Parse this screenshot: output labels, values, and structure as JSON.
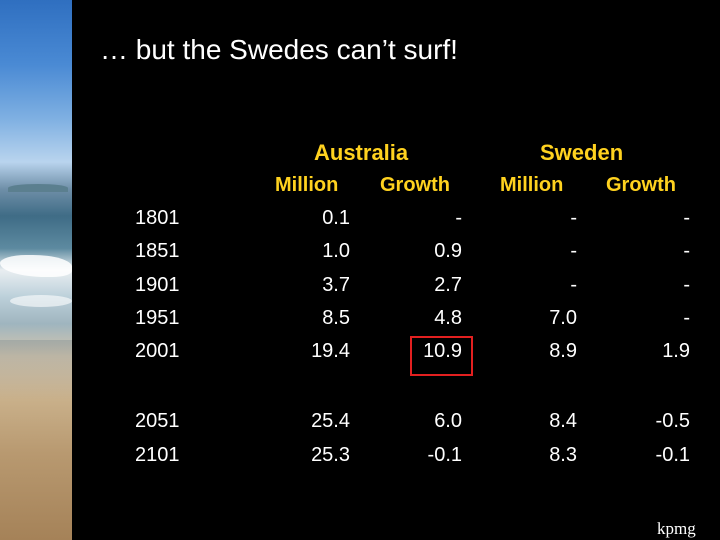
{
  "slide": {
    "title": "… but the Swedes can’t surf!",
    "logo": "kpmg"
  },
  "table": {
    "groups": [
      "Australia",
      "Sweden"
    ],
    "columns": [
      "Million",
      "Growth",
      "Million",
      "Growth"
    ],
    "rows": [
      {
        "year": "1801",
        "values": [
          "0.1",
          "-",
          "-",
          "-"
        ]
      },
      {
        "year": "1851",
        "values": [
          "1.0",
          "0.9",
          "-",
          "-"
        ]
      },
      {
        "year": "1901",
        "values": [
          "3.7",
          "2.7",
          "-",
          "-"
        ]
      },
      {
        "year": "1951",
        "values": [
          "8.5",
          "4.8",
          "7.0",
          "-"
        ]
      },
      {
        "year": "2001",
        "values": [
          "19.4",
          "10.9",
          "8.9",
          "1.9"
        ]
      },
      {
        "year": "2051",
        "values": [
          "25.4",
          "6.0",
          "8.4",
          "-0.5"
        ]
      },
      {
        "year": "2101",
        "values": [
          "25.3",
          "-0.1",
          "8.3",
          "-0.1"
        ]
      }
    ],
    "highlight_color": "#e32020",
    "header_color": "#ffd21f"
  }
}
